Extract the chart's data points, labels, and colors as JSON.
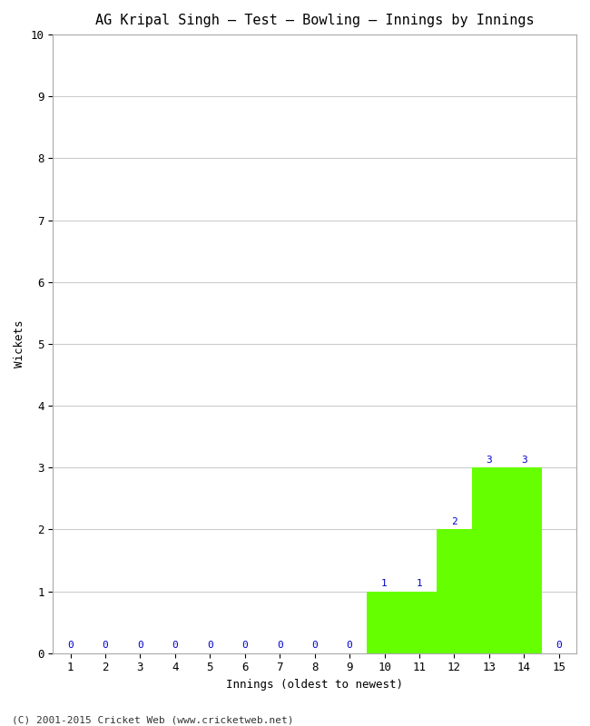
{
  "title": "AG Kripal Singh – Test – Bowling – Innings by Innings",
  "xlabel": "Innings (oldest to newest)",
  "ylabel": "Wickets",
  "innings": [
    1,
    2,
    3,
    4,
    5,
    6,
    7,
    8,
    9,
    10,
    11,
    12,
    13,
    14,
    15
  ],
  "wickets": [
    0,
    0,
    0,
    0,
    0,
    0,
    0,
    0,
    0,
    1,
    1,
    2,
    3,
    3,
    0
  ],
  "bar_color": "#66ff00",
  "ylim": [
    0,
    10
  ],
  "yticks": [
    0,
    1,
    2,
    3,
    4,
    5,
    6,
    7,
    8,
    9,
    10
  ],
  "xticks": [
    1,
    2,
    3,
    4,
    5,
    6,
    7,
    8,
    9,
    10,
    11,
    12,
    13,
    14,
    15
  ],
  "background_color": "#ffffff",
  "grid_color": "#cccccc",
  "label_color": "#0000cc",
  "footer": "(C) 2001-2015 Cricket Web (www.cricketweb.net)",
  "title_fontsize": 11,
  "axis_label_fontsize": 9,
  "tick_fontsize": 9,
  "value_label_fontsize": 8,
  "footer_fontsize": 8
}
